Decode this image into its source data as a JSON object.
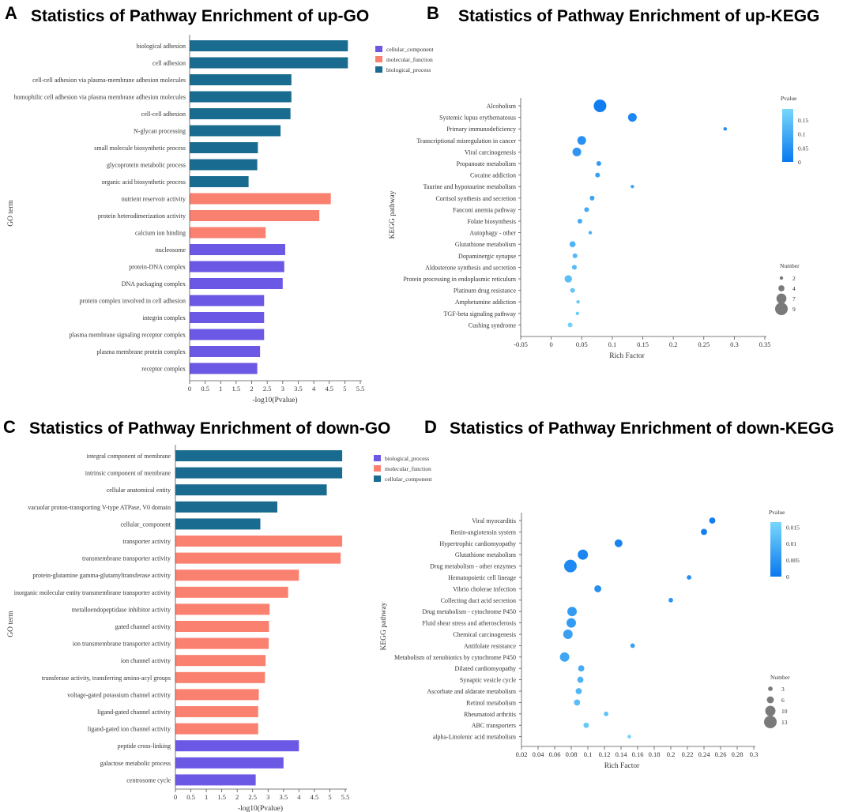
{
  "chart_data": [
    {
      "panel_label": "A",
      "type": "bar",
      "orientation": "horizontal",
      "title": "Statistics of Pathway Enrichment of up-GO",
      "xlabel": "-log10(Pvalue)",
      "ylabel": "GO term",
      "xlim": [
        0,
        5.5
      ],
      "xticks": [
        "0",
        "0.5",
        "1",
        "1.5",
        "2",
        "2.5",
        "3",
        "3.5",
        "4",
        "4.5",
        "5",
        "5.5"
      ],
      "legend": [
        {
          "name": "cellular_component",
          "color": "#6b59e6"
        },
        {
          "name": "molecular_function",
          "color": "#fa8170"
        },
        {
          "name": "biological_process",
          "color": "#196b8f"
        }
      ],
      "bars": [
        {
          "label": "biological adhesion",
          "value": 5.1,
          "category": "biological_process"
        },
        {
          "label": "cell adhesion",
          "value": 5.1,
          "category": "biological_process"
        },
        {
          "label": "cell-cell adhesion via plasma-membrane adhesion molecules",
          "value": 3.28,
          "category": "biological_process"
        },
        {
          "label": "homophilic cell adhesion via plasma membrane adhesion molecules",
          "value": 3.28,
          "category": "biological_process"
        },
        {
          "label": "cell-cell adhesion",
          "value": 3.25,
          "category": "biological_process"
        },
        {
          "label": "N-glycan processing",
          "value": 2.93,
          "category": "biological_process"
        },
        {
          "label": "small molecule biosynthetic process",
          "value": 2.2,
          "category": "biological_process"
        },
        {
          "label": "glycoprotein metabolic process",
          "value": 2.18,
          "category": "biological_process"
        },
        {
          "label": "organic acid biosynthetic process",
          "value": 1.9,
          "category": "biological_process"
        },
        {
          "label": "nutrient reservoir activity",
          "value": 4.55,
          "category": "molecular_function"
        },
        {
          "label": "protein heterodimerization activity",
          "value": 4.18,
          "category": "molecular_function"
        },
        {
          "label": "calcium ion binding",
          "value": 2.45,
          "category": "molecular_function"
        },
        {
          "label": "nucleosome",
          "value": 3.08,
          "category": "cellular_component"
        },
        {
          "label": "protein-DNA complex",
          "value": 3.05,
          "category": "cellular_component"
        },
        {
          "label": "DNA packaging complex",
          "value": 3.0,
          "category": "cellular_component"
        },
        {
          "label": "protein complex involved in cell adhesion",
          "value": 2.4,
          "category": "cellular_component"
        },
        {
          "label": "integrin complex",
          "value": 2.4,
          "category": "cellular_component"
        },
        {
          "label": "plasma membrane signaling receptor complex",
          "value": 2.4,
          "category": "cellular_component"
        },
        {
          "label": "plasma membrane protein complex",
          "value": 2.27,
          "category": "cellular_component"
        },
        {
          "label": "receptor complex",
          "value": 2.18,
          "category": "cellular_component"
        }
      ]
    },
    {
      "panel_label": "B",
      "type": "scatter",
      "title": "Statistics of Pathway Enrichment of up-KEGG",
      "xlabel": "Rich Factor",
      "ylabel": "KEGG pathway",
      "xlim": [
        -0.05,
        0.35
      ],
      "xticks": [
        "-0.05",
        "0",
        "0.05",
        "0.1",
        "0.15",
        "0.2",
        "0.25",
        "0.3",
        "0.35"
      ],
      "color_legend": {
        "title": "Pvalue",
        "max": 0.19,
        "ticks": [
          "0.15",
          "0.1",
          "0.05",
          "0"
        ],
        "tick_values": [
          0.15,
          0.1,
          0.05,
          0
        ]
      },
      "size_legend": {
        "title": "Number",
        "values": [
          2,
          4,
          7,
          9
        ],
        "labels": [
          "2",
          "4",
          "7",
          "9"
        ]
      },
      "points": [
        {
          "label": "Alcoholism",
          "x": 0.08,
          "number": 9,
          "pvalue": 0.01
        },
        {
          "label": "Systemic lupus erythematosus",
          "x": 0.133,
          "number": 6,
          "pvalue": 0.03
        },
        {
          "label": "Primary immunodeficiency",
          "x": 0.285,
          "number": 2,
          "pvalue": 0.04
        },
        {
          "label": "Transcriptional misregulation in cancer",
          "x": 0.05,
          "number": 6,
          "pvalue": 0.05
        },
        {
          "label": "Viral carcinogenesis",
          "x": 0.042,
          "number": 6,
          "pvalue": 0.06
        },
        {
          "label": "Propanoate metabolism",
          "x": 0.078,
          "number": 3,
          "pvalue": 0.07
        },
        {
          "label": "Cocaine addiction",
          "x": 0.076,
          "number": 3,
          "pvalue": 0.08
        },
        {
          "label": "Taurine and hypotaurine metabolism",
          "x": 0.133,
          "number": 2,
          "pvalue": 0.09
        },
        {
          "label": "Cortisol synthesis and secretion",
          "x": 0.067,
          "number": 3,
          "pvalue": 0.09
        },
        {
          "label": "Fanconi anemia pathway",
          "x": 0.058,
          "number": 3,
          "pvalue": 0.1
        },
        {
          "label": "Folate biosynthesis",
          "x": 0.047,
          "number": 3,
          "pvalue": 0.1
        },
        {
          "label": "Autophagy - other",
          "x": 0.064,
          "number": 2,
          "pvalue": 0.11
        },
        {
          "label": "Glutathione metabolism",
          "x": 0.035,
          "number": 4,
          "pvalue": 0.12
        },
        {
          "label": "Dopaminergic synapse",
          "x": 0.039,
          "number": 3,
          "pvalue": 0.13
        },
        {
          "label": "Aldosterone synthesis and secretion",
          "x": 0.038,
          "number": 3,
          "pvalue": 0.13
        },
        {
          "label": "Protein processing in endoplasmic reticulum",
          "x": 0.028,
          "number": 5,
          "pvalue": 0.14
        },
        {
          "label": "Platinum drug resistance",
          "x": 0.035,
          "number": 3,
          "pvalue": 0.15
        },
        {
          "label": "Amphetamine addiction",
          "x": 0.044,
          "number": 2,
          "pvalue": 0.16
        },
        {
          "label": "TGF-beta signaling pathway",
          "x": 0.043,
          "number": 2,
          "pvalue": 0.17
        },
        {
          "label": "Cushing syndrome",
          "x": 0.031,
          "number": 3,
          "pvalue": 0.18
        }
      ]
    },
    {
      "panel_label": "C",
      "type": "bar",
      "orientation": "horizontal",
      "title": "Statistics of Pathway Enrichment of down-GO",
      "xlabel": "-log10(Pvalue)",
      "ylabel": "GO term",
      "xlim": [
        0,
        5.5
      ],
      "xticks": [
        "0",
        "0.5",
        "1",
        "1.5",
        "2",
        "2.5",
        "3",
        "3.5",
        "4",
        "4.5",
        "5",
        "5.5"
      ],
      "legend": [
        {
          "name": "biological_process",
          "color": "#6b59e6"
        },
        {
          "name": "molecular_function",
          "color": "#fa8170"
        },
        {
          "name": "cellular_component",
          "color": "#196b8f"
        }
      ],
      "bars": [
        {
          "label": "integral component of membrane",
          "value": 5.4,
          "category": "cellular_component"
        },
        {
          "label": "intrinsic component of membrane",
          "value": 5.4,
          "category": "cellular_component"
        },
        {
          "label": "cellular anatomical entity",
          "value": 4.9,
          "category": "cellular_component"
        },
        {
          "label": "vacuolar proton-transporting V-type ATPase, V0 domain",
          "value": 3.3,
          "category": "cellular_component"
        },
        {
          "label": "cellular_component",
          "value": 2.75,
          "category": "cellular_component"
        },
        {
          "label": "transporter activity",
          "value": 5.4,
          "category": "molecular_function"
        },
        {
          "label": "transmembrane transporter activity",
          "value": 5.35,
          "category": "molecular_function"
        },
        {
          "label": "protein-glutamine gamma-glutamyltransferase activity",
          "value": 4.0,
          "category": "molecular_function"
        },
        {
          "label": "inorganic molecular entity transmembrane transporter activity",
          "value": 3.65,
          "category": "molecular_function"
        },
        {
          "label": "metalloendopeptidase inhibitor activity",
          "value": 3.05,
          "category": "molecular_function"
        },
        {
          "label": "gated channel activity",
          "value": 3.03,
          "category": "molecular_function"
        },
        {
          "label": "ion transmembrane transporter activity",
          "value": 3.02,
          "category": "molecular_function"
        },
        {
          "label": "ion channel activity",
          "value": 2.92,
          "category": "molecular_function"
        },
        {
          "label": "transferase activity, transferring amino-acyl groups",
          "value": 2.9,
          "category": "molecular_function"
        },
        {
          "label": "voltage-gated potassium channel activity",
          "value": 2.7,
          "category": "molecular_function"
        },
        {
          "label": "ligand-gated channel activity",
          "value": 2.68,
          "category": "molecular_function"
        },
        {
          "label": "ligand-gated ion channel activity",
          "value": 2.68,
          "category": "molecular_function"
        },
        {
          "label": "peptide cross-linking",
          "value": 4.0,
          "category": "biological_process"
        },
        {
          "label": "galactose metabolic process",
          "value": 3.5,
          "category": "biological_process"
        },
        {
          "label": "centrosome cycle",
          "value": 2.6,
          "category": "biological_process"
        }
      ]
    },
    {
      "panel_label": "D",
      "type": "scatter",
      "title": "Statistics of Pathway Enrichment of down-KEGG",
      "xlabel": "Rich Factor",
      "ylabel": "KEGG pathway",
      "xlim": [
        0.02,
        0.3
      ],
      "xticks": [
        "0.02",
        "0.04",
        "0.06",
        "0.08",
        "0.1",
        "0.12",
        "0.14",
        "0.16",
        "0.18",
        "0.2",
        "0.22",
        "0.24",
        "0.26",
        "0.28",
        "0.3"
      ],
      "color_legend": {
        "title": "Pvalue",
        "max": 0.0165,
        "ticks": [
          "0.015",
          "0.01",
          "0.005",
          "0"
        ],
        "tick_values": [
          0.015,
          0.01,
          0.005,
          0
        ]
      },
      "size_legend": {
        "title": "Number",
        "values": [
          3,
          6,
          10,
          13
        ],
        "labels": [
          "3",
          "6",
          "10",
          "13"
        ]
      },
      "points": [
        {
          "label": "Viral myocarditis",
          "x": 0.25,
          "number": 5,
          "pvalue": 0.001
        },
        {
          "label": "Renin-angiotensin system",
          "x": 0.24,
          "number": 5,
          "pvalue": 0.0015
        },
        {
          "label": "Hypertrophic cardiomyopathy",
          "x": 0.137,
          "number": 7,
          "pvalue": 0.002
        },
        {
          "label": "Glutathione metabolism",
          "x": 0.094,
          "number": 10,
          "pvalue": 0.0025
        },
        {
          "label": "Drug metabolism - other enzymes",
          "x": 0.079,
          "number": 13,
          "pvalue": 0.003
        },
        {
          "label": "Hematopoietic cell lineage",
          "x": 0.222,
          "number": 3,
          "pvalue": 0.004
        },
        {
          "label": "Vibrio cholerae infection",
          "x": 0.112,
          "number": 6,
          "pvalue": 0.004
        },
        {
          "label": "Collecting duct acid secretion",
          "x": 0.2,
          "number": 3,
          "pvalue": 0.005
        },
        {
          "label": "Drug metabolism - cytochrome P450",
          "x": 0.081,
          "number": 9,
          "pvalue": 0.006
        },
        {
          "label": "Fluid shear stress and atherosclerosis",
          "x": 0.08,
          "number": 9,
          "pvalue": 0.006
        },
        {
          "label": "Chemical carcinogenesis",
          "x": 0.076,
          "number": 9,
          "pvalue": 0.007
        },
        {
          "label": "Antifolate resistance",
          "x": 0.154,
          "number": 3,
          "pvalue": 0.007
        },
        {
          "label": "Metabolism of xenobiotics by cytochrome P450",
          "x": 0.072,
          "number": 9,
          "pvalue": 0.008
        },
        {
          "label": "Dilated cardiomyopathy",
          "x": 0.092,
          "number": 5,
          "pvalue": 0.009
        },
        {
          "label": "Synaptic vesicle cycle",
          "x": 0.091,
          "number": 5,
          "pvalue": 0.01
        },
        {
          "label": "Ascorbate and aldarate metabolism",
          "x": 0.089,
          "number": 5,
          "pvalue": 0.011
        },
        {
          "label": "Retinol metabolism",
          "x": 0.087,
          "number": 5,
          "pvalue": 0.012
        },
        {
          "label": "Rheumatoid arthritis",
          "x": 0.122,
          "number": 3,
          "pvalue": 0.013
        },
        {
          "label": "ABC transporters",
          "x": 0.098,
          "number": 4,
          "pvalue": 0.014
        },
        {
          "label": "alpha-Linolenic acid metabolism",
          "x": 0.15,
          "number": 2,
          "pvalue": 0.016
        }
      ]
    }
  ]
}
